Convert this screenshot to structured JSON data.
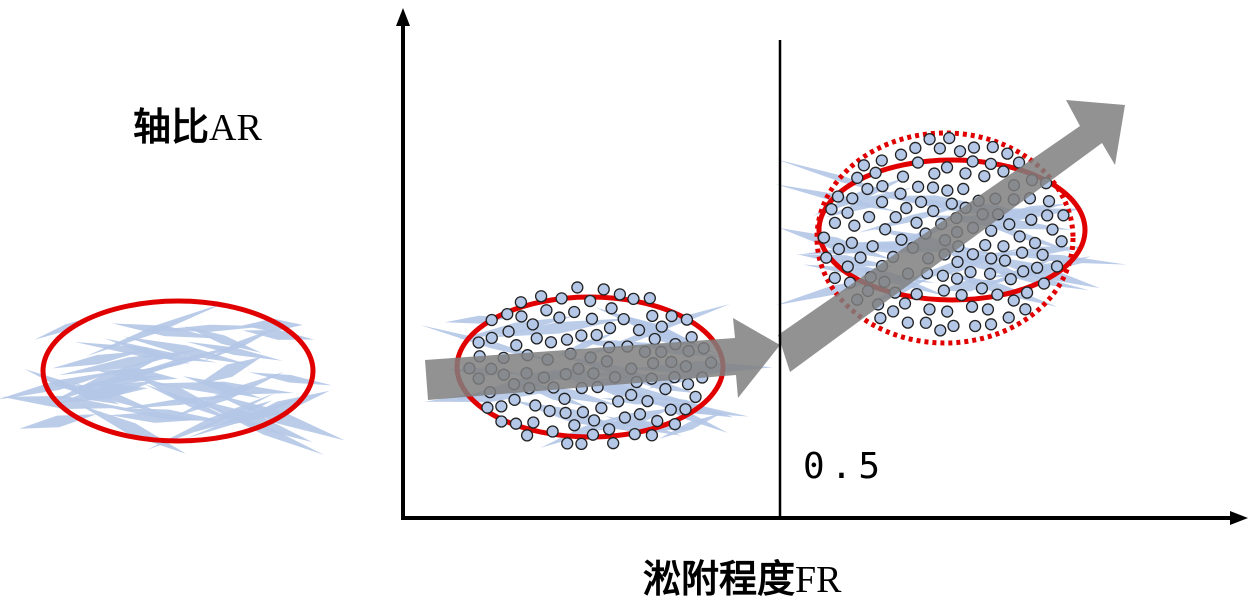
{
  "y_axis_label": {
    "main": "轴比",
    "unit": "AR"
  },
  "x_axis_label": {
    "main": "淞附程度",
    "unit": "FR"
  },
  "threshold_label": "0.5"
}
